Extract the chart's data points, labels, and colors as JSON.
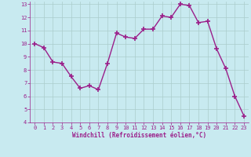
{
  "x": [
    0,
    1,
    2,
    3,
    4,
    5,
    6,
    7,
    8,
    9,
    10,
    11,
    12,
    13,
    14,
    15,
    16,
    17,
    18,
    19,
    20,
    21,
    22,
    23
  ],
  "y": [
    10.0,
    9.7,
    8.6,
    8.5,
    7.5,
    6.6,
    6.8,
    6.5,
    8.5,
    10.8,
    10.5,
    10.4,
    11.1,
    11.1,
    12.1,
    12.0,
    13.0,
    12.9,
    11.6,
    11.7,
    9.6,
    8.1,
    6.0,
    4.5
  ],
  "line_color": "#9b1f8a",
  "marker": "+",
  "marker_size": 4,
  "marker_lw": 1.2,
  "line_width": 1.0,
  "bg_color": "#c8eaf0",
  "grid_color": "#aacccc",
  "xlabel": "Windchill (Refroidissement éolien,°C)",
  "xlabel_color": "#9b1f8a",
  "tick_color": "#9b1f8a",
  "ylim": [
    4,
    13
  ],
  "xlim": [
    -0.5,
    23.5
  ],
  "yticks": [
    4,
    5,
    6,
    7,
    8,
    9,
    10,
    11,
    12,
    13
  ],
  "xticks": [
    0,
    1,
    2,
    3,
    4,
    5,
    6,
    7,
    8,
    9,
    10,
    11,
    12,
    13,
    14,
    15,
    16,
    17,
    18,
    19,
    20,
    21,
    22,
    23
  ],
  "tick_fontsize": 5.0,
  "xlabel_fontsize": 5.5
}
